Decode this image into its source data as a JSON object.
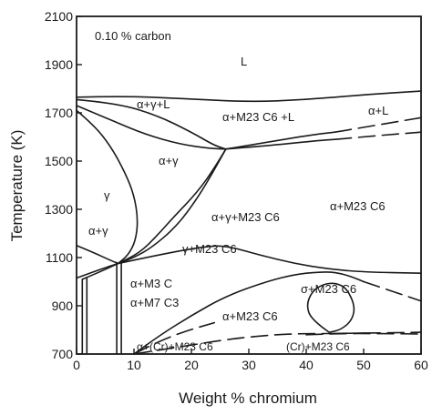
{
  "chart_data": {
    "type": "line",
    "subtitle": "0.10 % carbon",
    "xlabel": "Weight % chromium",
    "ylabel": "Temperature (K)",
    "xlim": [
      0,
      60
    ],
    "ylim": [
      700,
      2100
    ],
    "x_ticks": [
      "0",
      "10",
      "20",
      "30",
      "40",
      "50",
      "60"
    ],
    "y_ticks": [
      "700",
      "900",
      "1100",
      "1300",
      "1500",
      "1700",
      "1900",
      "2100"
    ],
    "grid": false,
    "phase_labels": [
      "L",
      "α+γ+L",
      "α+M23 C6 +L",
      "α+L",
      "α+γ",
      "γ",
      "α+γ+M23 C6",
      "α+M23 C6",
      "α+γ",
      "γ+M23 C6",
      "α+M3 C",
      "σ+M23 C6",
      "α+M7 C3",
      "α+M23 C6",
      "α+(Cr)+M23 C6",
      "(Cr)+M23 C6"
    ],
    "boundaries": [
      {
        "style": "solid",
        "points": [
          [
            0,
            1765
          ],
          [
            8,
            1770
          ],
          [
            18,
            1760
          ],
          [
            30,
            1745
          ],
          [
            40,
            1755
          ],
          [
            50,
            1775
          ],
          [
            60,
            1790
          ]
        ]
      },
      {
        "style": "solid",
        "points": [
          [
            0,
            1755
          ],
          [
            7,
            1740
          ],
          [
            14,
            1690
          ],
          [
            20,
            1620
          ],
          [
            24,
            1565
          ],
          [
            26,
            1550
          ]
        ]
      },
      {
        "style": "solid",
        "points": [
          [
            26,
            1550
          ],
          [
            34,
            1565
          ],
          [
            42,
            1585
          ],
          [
            45,
            1590
          ]
        ]
      },
      {
        "style": "dashed",
        "points": [
          [
            45,
            1590
          ],
          [
            52,
            1605
          ],
          [
            60,
            1620
          ]
        ]
      },
      {
        "style": "solid",
        "points": [
          [
            26,
            1550
          ],
          [
            36,
            1590
          ],
          [
            42,
            1612
          ],
          [
            45,
            1620
          ]
        ]
      },
      {
        "style": "dashed",
        "points": [
          [
            45,
            1620
          ],
          [
            52,
            1648
          ],
          [
            60,
            1680
          ]
        ]
      },
      {
        "style": "solid",
        "points": [
          [
            0,
            1710
          ],
          [
            3,
            1650
          ],
          [
            6,
            1560
          ],
          [
            8.5,
            1450
          ],
          [
            10,
            1360
          ],
          [
            10.7,
            1260
          ],
          [
            10.3,
            1170
          ],
          [
            9,
            1110
          ],
          [
            7.2,
            1075
          ]
        ]
      },
      {
        "style": "solid",
        "points": [
          [
            0,
            1730
          ],
          [
            6,
            1670
          ],
          [
            12,
            1610
          ],
          [
            18,
            1570
          ],
          [
            23,
            1553
          ],
          [
            26,
            1550
          ]
        ]
      },
      {
        "style": "solid",
        "points": [
          [
            26,
            1550
          ],
          [
            24,
            1470
          ],
          [
            21,
            1370
          ],
          [
            17,
            1270
          ],
          [
            14,
            1190
          ],
          [
            11,
            1120
          ],
          [
            7.2,
            1075
          ]
        ]
      },
      {
        "style": "solid",
        "points": [
          [
            26,
            1550
          ],
          [
            23,
            1420
          ],
          [
            20,
            1310
          ],
          [
            17,
            1220
          ],
          [
            13,
            1140
          ],
          [
            10,
            1100
          ],
          [
            7.2,
            1075
          ]
        ]
      },
      {
        "style": "solid",
        "points": [
          [
            0,
            1150
          ],
          [
            3,
            1120
          ],
          [
            5.5,
            1093
          ],
          [
            7.2,
            1075
          ]
        ]
      },
      {
        "style": "solid",
        "points": [
          [
            0,
            1015
          ],
          [
            4,
            1050
          ],
          [
            7.2,
            1075
          ]
        ]
      },
      {
        "style": "solid",
        "points": [
          [
            1,
            1010
          ],
          [
            4,
            1040
          ],
          [
            7.2,
            1075
          ]
        ]
      },
      {
        "style": "solid",
        "points": [
          [
            7.2,
            1075
          ],
          [
            14,
            1110
          ],
          [
            22,
            1145
          ],
          [
            26,
            1150
          ],
          [
            32,
            1110
          ],
          [
            38,
            1075
          ],
          [
            44,
            1052
          ],
          [
            50,
            1040
          ],
          [
            60,
            1035
          ]
        ]
      },
      {
        "style": "solid",
        "points": [
          [
            1,
            1010
          ],
          [
            1,
            700
          ]
        ]
      },
      {
        "style": "solid",
        "points": [
          [
            1.8,
            1015
          ],
          [
            1.8,
            700
          ]
        ]
      },
      {
        "style": "solid",
        "points": [
          [
            7,
            1080
          ],
          [
            7,
            700
          ]
        ]
      },
      {
        "style": "solid",
        "points": [
          [
            7.8,
            1080
          ],
          [
            7.8,
            700
          ]
        ]
      },
      {
        "style": "solid",
        "points": [
          [
            10,
            700
          ],
          [
            14,
            770
          ],
          [
            20,
            860
          ],
          [
            26,
            940
          ],
          [
            33,
            1000
          ],
          [
            38,
            1030
          ],
          [
            42,
            1040
          ],
          [
            45,
            1040
          ],
          [
            48,
            1020
          ],
          [
            50,
            1000
          ]
        ]
      },
      {
        "style": "dashed",
        "points": [
          [
            50,
            1000
          ],
          [
            55,
            960
          ],
          [
            60,
            920
          ]
        ]
      },
      {
        "style": "dashed",
        "points": [
          [
            10,
            700
          ],
          [
            14,
            750
          ],
          [
            19,
            795
          ],
          [
            24,
            830
          ]
        ]
      },
      {
        "style": "dashed",
        "points": [
          [
            10,
            700
          ],
          [
            18,
            730
          ],
          [
            26,
            760
          ],
          [
            32,
            775
          ],
          [
            36,
            782
          ],
          [
            40,
            785
          ],
          [
            44,
            785
          ]
        ]
      },
      {
        "style": "solid",
        "points": [
          [
            44,
            785
          ],
          [
            48,
            786
          ],
          [
            50,
            787
          ]
        ]
      },
      {
        "style": "dashed",
        "points": [
          [
            50,
            787
          ],
          [
            55,
            788
          ],
          [
            60,
            790
          ]
        ]
      },
      {
        "style": "dashed",
        "points": [
          [
            40,
            780
          ],
          [
            46,
            785
          ],
          [
            52,
            785
          ],
          [
            60,
            783
          ]
        ]
      },
      {
        "style": "solid",
        "points": [
          [
            44,
            790
          ],
          [
            41,
            840
          ],
          [
            40,
            900
          ],
          [
            41,
            960
          ],
          [
            43,
            990
          ],
          [
            45,
            995
          ],
          [
            47,
            975
          ],
          [
            48.5,
            900
          ],
          [
            48,
            840
          ],
          [
            46,
            800
          ],
          [
            44,
            790
          ]
        ]
      }
    ]
  }
}
